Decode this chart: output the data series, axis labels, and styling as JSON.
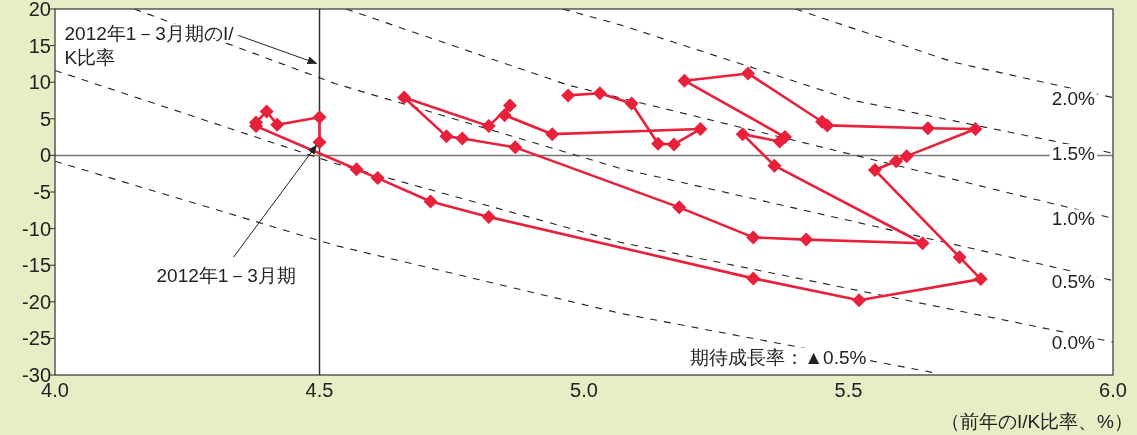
{
  "chart_data": {
    "type": "line",
    "xlabel": "（前年のI/K比率、%）",
    "xlim": [
      4.0,
      6.0
    ],
    "xticks": [
      {
        "value": 4.0,
        "label": "4.0"
      },
      {
        "value": 4.5,
        "label": "4.5"
      },
      {
        "value": 5.0,
        "label": "5.0"
      },
      {
        "value": 5.5,
        "label": "5.5"
      },
      {
        "value": 6.0,
        "label": "6.0"
      }
    ],
    "ylim": [
      -30,
      20
    ],
    "yticks": [
      -30,
      -25,
      -20,
      -15,
      -10,
      -5,
      0,
      5,
      10,
      15,
      20
    ],
    "series": [
      {
        "name": "2.0%",
        "color": "#222222",
        "line_style": "dashed",
        "marker": "none",
        "x": [
          5.4,
          5.7,
          6.0
        ],
        "values": [
          20.0,
          12.7,
          7.9
        ]
      },
      {
        "name": "1.5%",
        "color": "#222222",
        "line_style": "dashed",
        "marker": "none",
        "x": [
          4.96,
          5.07,
          5.51,
          6.0
        ],
        "values": [
          20.0,
          17.8,
          7.5,
          0.3
        ]
      },
      {
        "name": "1.0%",
        "color": "#222222",
        "line_style": "dashed",
        "marker": "none",
        "x": [
          4.55,
          4.97,
          6.0
        ],
        "values": [
          20.0,
          9.6,
          -8.6
        ]
      },
      {
        "name": "0.5%",
        "color": "#222222",
        "line_style": "dashed",
        "marker": "none",
        "x": [
          4.15,
          4.53,
          5.07,
          6.0
        ],
        "values": [
          20.0,
          9.8,
          -1.8,
          -17.1
        ]
      },
      {
        "name": "0.0%",
        "color": "#222222",
        "line_style": "dashed",
        "marker": "none",
        "x": [
          4.0,
          4.53,
          5.07,
          6.0
        ],
        "values": [
          11.6,
          -1.1,
          -11.9,
          -25.5
        ]
      },
      {
        "name": "期待成長率：▲0.5%",
        "color": "#222222",
        "line_style": "dashed",
        "marker": "none",
        "x": [
          4.0,
          4.53,
          5.07,
          5.67
        ],
        "values": [
          -0.8,
          -12.3,
          -21.6,
          -29.8
        ]
      },
      {
        "color": "#e8203a",
        "line_style": "solid",
        "marker": "diamond",
        "x": [
          4.97,
          5.03,
          5.09,
          5.14,
          5.17,
          5.22,
          4.94,
          4.85,
          4.86,
          4.82,
          4.66,
          4.74,
          4.77,
          4.87,
          5.18,
          5.32,
          5.42,
          5.64,
          5.36,
          5.3,
          5.37,
          5.38,
          5.19,
          5.31,
          5.45,
          5.46,
          5.65,
          5.74,
          5.61,
          5.59,
          5.55,
          5.71,
          5.75,
          5.52,
          5.32,
          4.82,
          4.71,
          4.61,
          4.57,
          4.38,
          4.38,
          4.4,
          4.42,
          4.5,
          4.5
        ],
        "values": [
          8.2,
          8.5,
          7.1,
          1.6,
          1.5,
          3.6,
          2.9,
          5.5,
          6.8,
          4.0,
          7.9,
          2.6,
          2.3,
          1.1,
          -7.1,
          -11.2,
          -11.5,
          -12.0,
          -1.4,
          2.9,
          1.9,
          2.5,
          10.2,
          11.2,
          4.6,
          4.1,
          3.7,
          3.6,
          -0.1,
          -0.8,
          -2.0,
          -13.9,
          -16.9,
          -19.8,
          -16.8,
          -8.4,
          -6.3,
          -3.1,
          -1.9,
          4.0,
          4.5,
          6.0,
          4.2,
          5.2,
          1.8
        ]
      }
    ],
    "ref_lines": [
      {
        "axis": "x",
        "value": 4.5,
        "color": "#333333"
      },
      {
        "axis": "y",
        "value": 0,
        "color": "#777777"
      }
    ],
    "annotations": [
      {
        "text": "2012年1－3月期のI/K比率",
        "x": 4.5,
        "y": 12.3
      },
      {
        "text": "2012年1－3月期",
        "x": 4.5,
        "y": 1.8
      }
    ]
  }
}
